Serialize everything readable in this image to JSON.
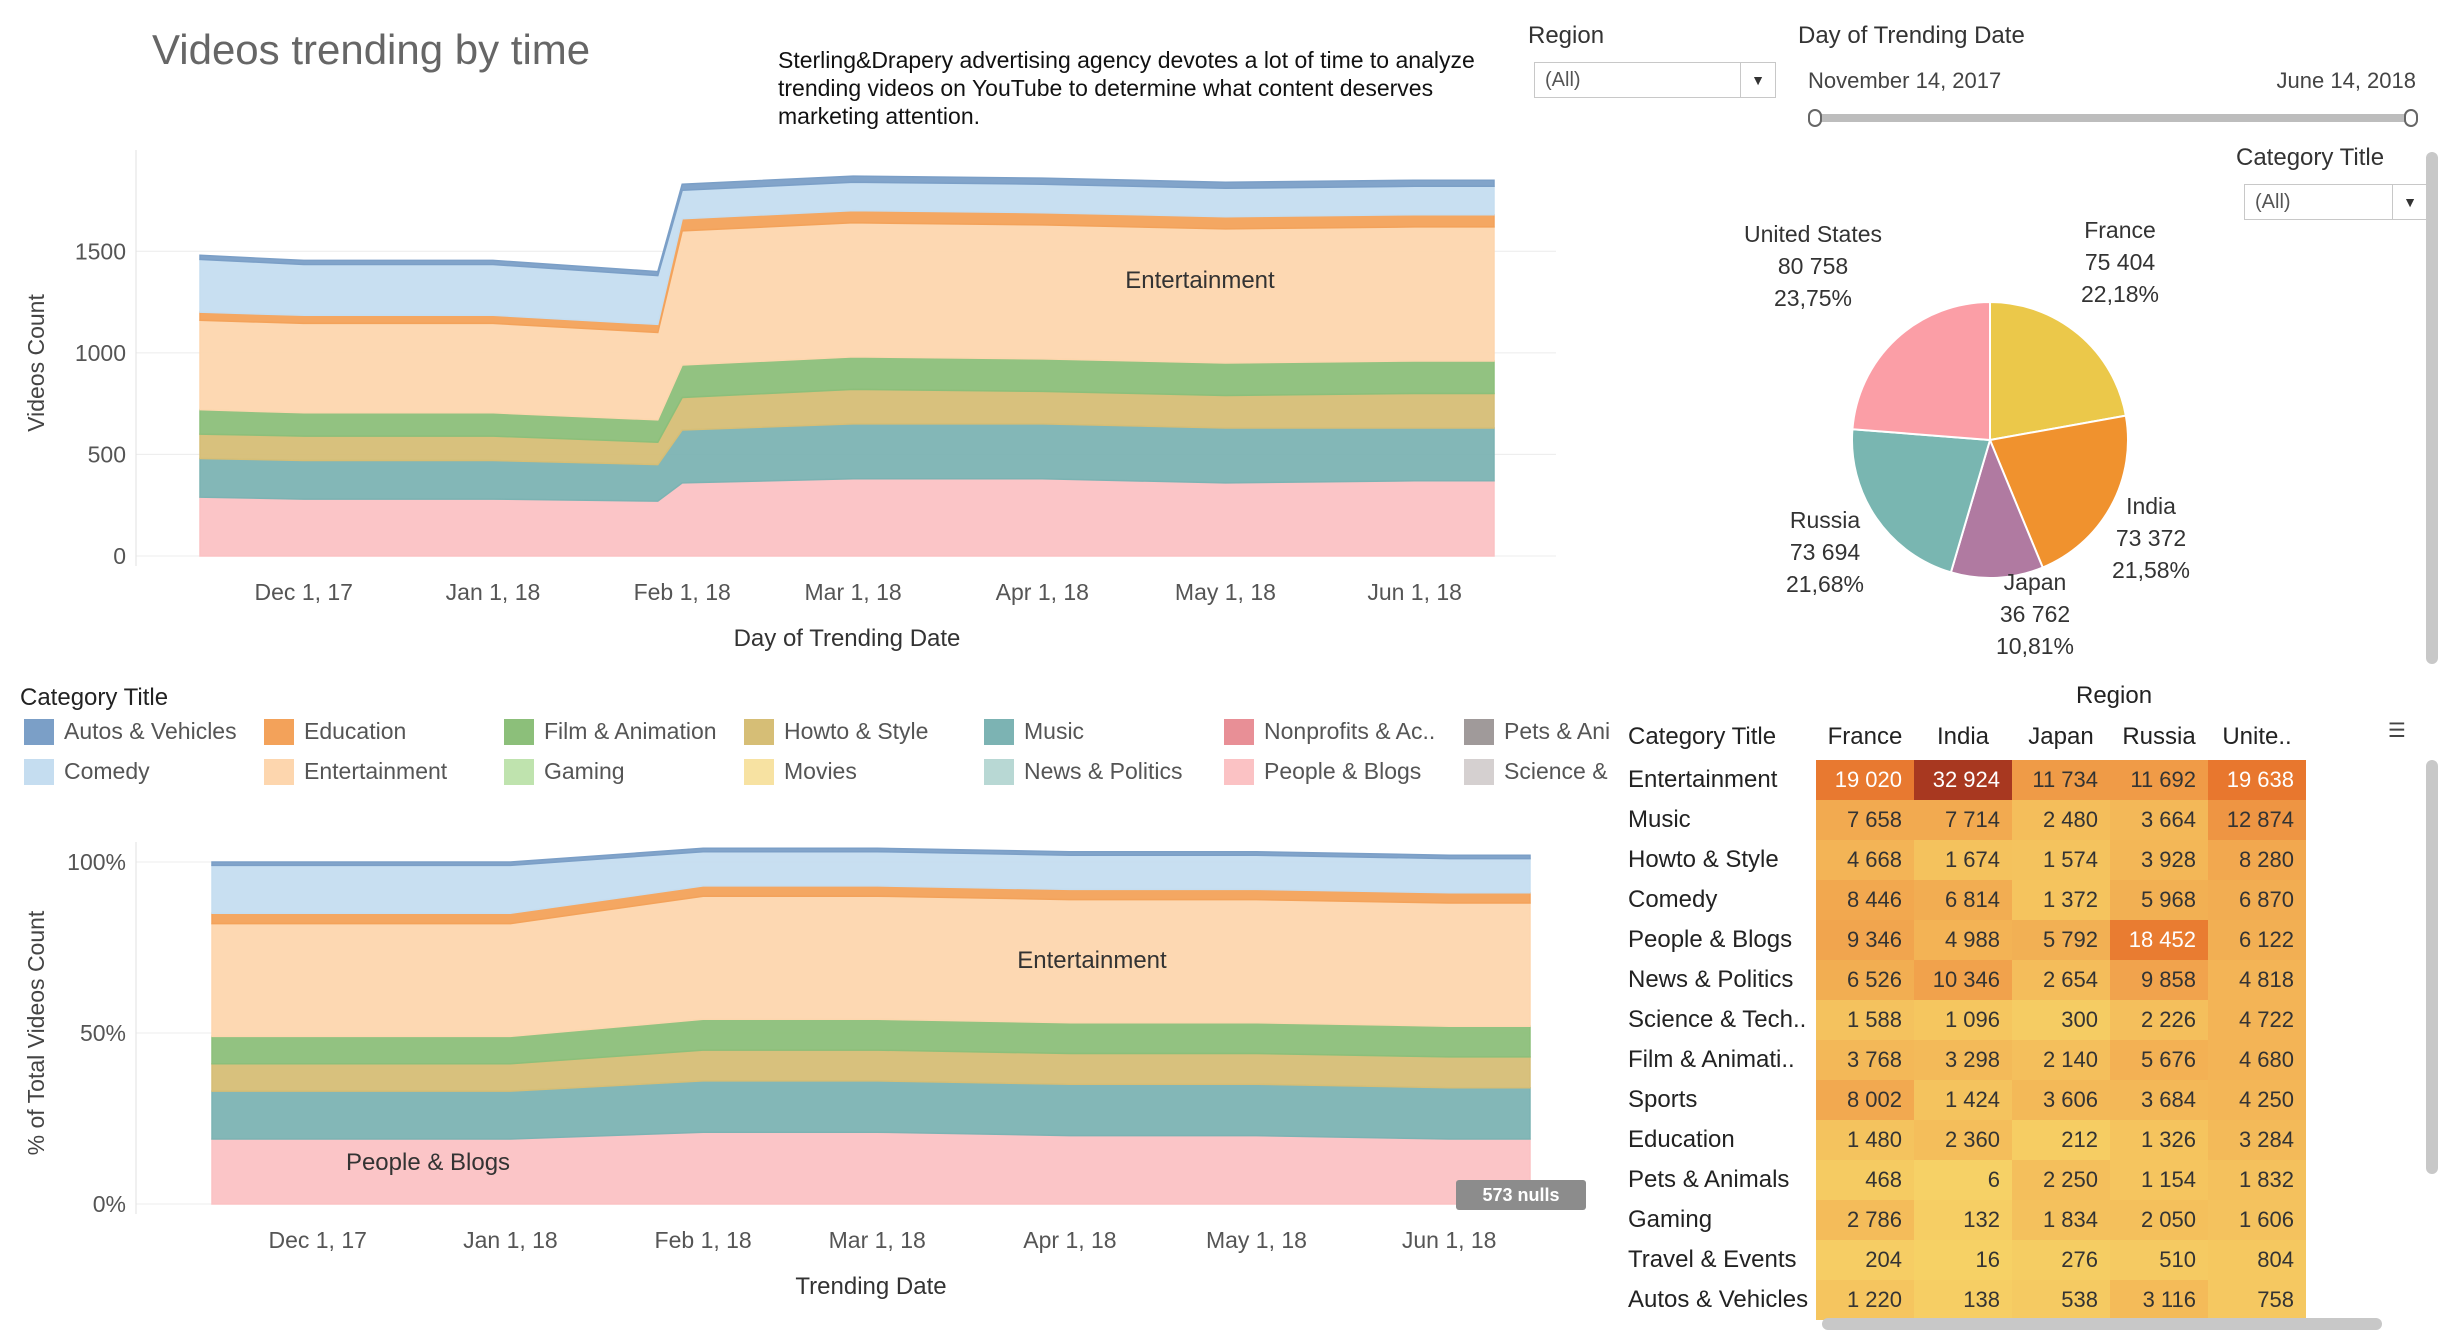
{
  "title": "Videos trending by time",
  "description": "Sterling&Drapery advertising agency devotes a lot of time to analyze trending videos on YouTube to determine what content deserves marketing attention.",
  "filters": {
    "region": {
      "label": "Region",
      "value": "(All)"
    },
    "date": {
      "label": "Day of Trending Date",
      "start": "November 14, 2017",
      "end": "June 14, 2018"
    },
    "category": {
      "label": "Category Title",
      "value": "(All)"
    }
  },
  "legend": {
    "title": "Category Title",
    "items": [
      {
        "name": "Autos & Vehicles",
        "color": "#7b9fc7"
      },
      {
        "name": "Comedy",
        "color": "#c5ddf0"
      },
      {
        "name": "Education",
        "color": "#f3a25a"
      },
      {
        "name": "Entertainment",
        "color": "#fdd6ae"
      },
      {
        "name": "Film & Animation",
        "color": "#8cbf7a"
      },
      {
        "name": "Gaming",
        "color": "#bfe3ae"
      },
      {
        "name": "Howto & Style",
        "color": "#d6be76"
      },
      {
        "name": "Movies",
        "color": "#f7e2a2"
      },
      {
        "name": "Music",
        "color": "#7cb3b3"
      },
      {
        "name": "News & Politics",
        "color": "#b8d8d4"
      },
      {
        "name": "Nonprofits & Ac..",
        "color": "#e88f96"
      },
      {
        "name": "People & Blogs",
        "color": "#fbc2c4"
      },
      {
        "name": "Pets & Ani",
        "color": "#a09a9a"
      },
      {
        "name": "Science &",
        "color": "#d5d0d0"
      }
    ]
  },
  "nulls_badge": "573 nulls",
  "chart_data": [
    {
      "type": "area",
      "name": "Videos trending by time (stacked counts)",
      "xlabel": "Day of Trending Date",
      "ylabel": "Videos Count",
      "x_ticks": [
        "Dec 1, 17",
        "Jan 1, 18",
        "Feb 1, 18",
        "Mar 1, 18",
        "Apr 1, 18",
        "May 1, 18",
        "Jun 1, 18"
      ],
      "y_ticks": [
        "0",
        "500",
        "1000",
        "1500"
      ],
      "ylim": [
        0,
        1900
      ],
      "annotation": "Entertainment",
      "x": [
        "2017-11-14",
        "2017-12-01",
        "2018-01-01",
        "2018-01-28",
        "2018-02-01",
        "2018-03-01",
        "2018-04-01",
        "2018-05-01",
        "2018-06-01",
        "2018-06-14"
      ],
      "series": [
        {
          "name": "People & Blogs",
          "values": [
            290,
            280,
            280,
            270,
            360,
            380,
            380,
            360,
            370,
            370
          ]
        },
        {
          "name": "Music",
          "values": [
            190,
            190,
            190,
            180,
            260,
            270,
            270,
            270,
            260,
            260
          ]
        },
        {
          "name": "Howto & Style",
          "values": [
            120,
            120,
            120,
            110,
            160,
            170,
            160,
            160,
            170,
            170
          ]
        },
        {
          "name": "Film & Animation",
          "values": [
            120,
            115,
            115,
            110,
            160,
            160,
            160,
            160,
            160,
            160
          ]
        },
        {
          "name": "Entertainment",
          "values": [
            440,
            440,
            440,
            430,
            660,
            660,
            660,
            660,
            660,
            660
          ]
        },
        {
          "name": "Education",
          "values": [
            40,
            40,
            40,
            40,
            60,
            60,
            60,
            60,
            60,
            60
          ]
        },
        {
          "name": "Comedy",
          "values": [
            260,
            250,
            250,
            240,
            140,
            140,
            140,
            140,
            140,
            140
          ]
        },
        {
          "name": "Autos & Vehicles",
          "values": [
            20,
            20,
            20,
            20,
            30,
            30,
            30,
            30,
            30,
            30
          ]
        }
      ]
    },
    {
      "type": "pie",
      "categories": [
        "France",
        "India",
        "Japan",
        "Russia",
        "United States"
      ],
      "values": [
        75404,
        73372,
        36762,
        73694,
        80758
      ],
      "value_labels": [
        "75 404",
        "73 372",
        "36 762",
        "73 694",
        "80 758"
      ],
      "percent_labels": [
        "22,18%",
        "21,58%",
        "10,81%",
        "21,68%",
        "23,75%"
      ],
      "colors": [
        "#ebc84a",
        "#f0922e",
        "#b07aa1",
        "#79b6b1",
        "#fb9ea6"
      ]
    },
    {
      "type": "area",
      "name": "% of Total Videos Count (stacked)",
      "xlabel": "Trending Date",
      "ylabel": "% of Total Videos Count",
      "x_ticks": [
        "Dec 1, 17",
        "Jan 1, 18",
        "Feb 1, 18",
        "Mar 1, 18",
        "Apr 1, 18",
        "May 1, 18",
        "Jun 1, 18"
      ],
      "y_ticks": [
        "0%",
        "50%",
        "100%"
      ],
      "ylim": [
        0,
        100
      ],
      "annotations": [
        "Entertainment",
        "People & Blogs"
      ],
      "x": [
        "2017-11-14",
        "2017-12-01",
        "2018-01-01",
        "2018-02-01",
        "2018-03-01",
        "2018-04-01",
        "2018-05-01",
        "2018-06-01",
        "2018-06-14"
      ],
      "series": [
        {
          "name": "People & Blogs",
          "values": [
            19,
            19,
            19,
            21,
            21,
            20,
            20,
            19,
            19
          ]
        },
        {
          "name": "Music",
          "values": [
            14,
            14,
            14,
            15,
            15,
            15,
            15,
            15,
            15
          ]
        },
        {
          "name": "Howto & Style",
          "values": [
            8,
            8,
            8,
            9,
            9,
            9,
            9,
            9,
            9
          ]
        },
        {
          "name": "Film & Animation",
          "values": [
            8,
            8,
            8,
            9,
            9,
            9,
            9,
            9,
            9
          ]
        },
        {
          "name": "Entertainment",
          "values": [
            33,
            33,
            33,
            36,
            36,
            36,
            36,
            36,
            36
          ]
        },
        {
          "name": "Education",
          "values": [
            3,
            3,
            3,
            3,
            3,
            3,
            3,
            3,
            3
          ]
        },
        {
          "name": "Comedy",
          "values": [
            14,
            14,
            14,
            10,
            10,
            10,
            10,
            10,
            10
          ]
        },
        {
          "name": "Autos & Vehicles",
          "values": [
            1,
            1,
            1,
            1,
            1,
            1,
            1,
            1,
            1
          ]
        }
      ]
    },
    {
      "type": "heatmap",
      "row_header": "Category Title",
      "col_header": "Region",
      "columns": [
        "France",
        "India",
        "Japan",
        "Russia",
        "Unite.."
      ],
      "rows": [
        {
          "label": "Entertainment",
          "values": [
            19020,
            32924,
            11734,
            11692,
            19638
          ],
          "labels": [
            "19 020",
            "32 924",
            "11 734",
            "11 692",
            "19 638"
          ]
        },
        {
          "label": "Music",
          "values": [
            7658,
            7714,
            2480,
            3664,
            12874
          ],
          "labels": [
            "7 658",
            "7 714",
            "2 480",
            "3 664",
            "12 874"
          ]
        },
        {
          "label": "Howto & Style",
          "values": [
            4668,
            1674,
            1574,
            3928,
            8280
          ],
          "labels": [
            "4 668",
            "1 674",
            "1 574",
            "3 928",
            "8 280"
          ]
        },
        {
          "label": "Comedy",
          "values": [
            8446,
            6814,
            1372,
            5968,
            6870
          ],
          "labels": [
            "8 446",
            "6 814",
            "1 372",
            "5 968",
            "6 870"
          ]
        },
        {
          "label": "People & Blogs",
          "values": [
            9346,
            4988,
            5792,
            18452,
            6122
          ],
          "labels": [
            "9 346",
            "4 988",
            "5 792",
            "18 452",
            "6 122"
          ]
        },
        {
          "label": "News & Politics",
          "values": [
            6526,
            10346,
            2654,
            9858,
            4818
          ],
          "labels": [
            "6 526",
            "10 346",
            "2 654",
            "9 858",
            "4 818"
          ]
        },
        {
          "label": "Science & Tech..",
          "values": [
            1588,
            1096,
            300,
            2226,
            4722
          ],
          "labels": [
            "1 588",
            "1 096",
            "300",
            "2 226",
            "4 722"
          ]
        },
        {
          "label": "Film & Animati..",
          "values": [
            3768,
            3298,
            2140,
            5676,
            4680
          ],
          "labels": [
            "3 768",
            "3 298",
            "2 140",
            "5 676",
            "4 680"
          ]
        },
        {
          "label": "Sports",
          "values": [
            8002,
            1424,
            3606,
            3684,
            4250
          ],
          "labels": [
            "8 002",
            "1 424",
            "3 606",
            "3 684",
            "4 250"
          ]
        },
        {
          "label": "Education",
          "values": [
            1480,
            2360,
            212,
            1326,
            3284
          ],
          "labels": [
            "1 480",
            "2 360",
            "212",
            "1 326",
            "3 284"
          ]
        },
        {
          "label": "Pets & Animals",
          "values": [
            468,
            6,
            2250,
            1154,
            1832
          ],
          "labels": [
            "468",
            "6",
            "2 250",
            "1 154",
            "1 832"
          ]
        },
        {
          "label": "Gaming",
          "values": [
            2786,
            132,
            1834,
            2050,
            1606
          ],
          "labels": [
            "2 786",
            "132",
            "1 834",
            "2 050",
            "1 606"
          ]
        },
        {
          "label": "Travel & Events",
          "values": [
            204,
            16,
            276,
            510,
            804
          ],
          "labels": [
            "204",
            "16",
            "276",
            "510",
            "804"
          ]
        },
        {
          "label": "Autos & Vehicles",
          "values": [
            1220,
            138,
            538,
            3116,
            758
          ],
          "labels": [
            "1 220",
            "138",
            "538",
            "3 116",
            "758"
          ]
        }
      ]
    }
  ]
}
